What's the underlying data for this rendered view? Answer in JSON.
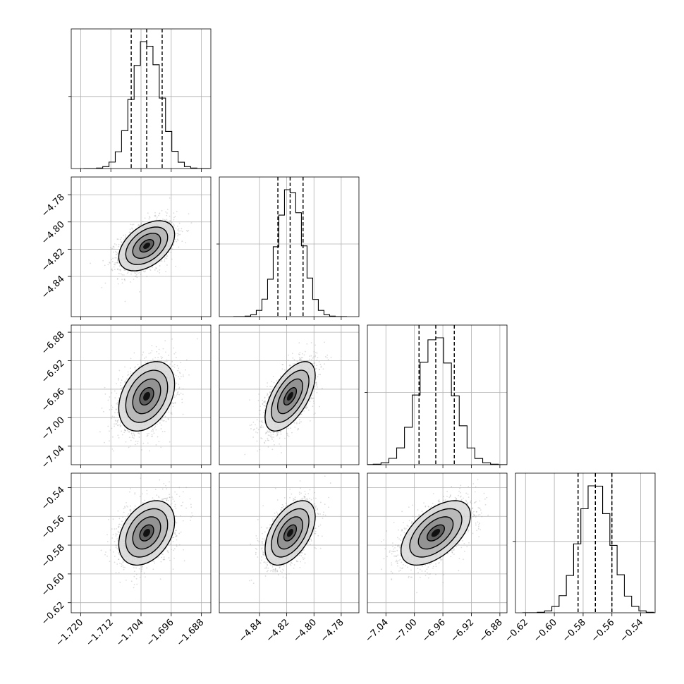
{
  "chart_data": {
    "type": "corner",
    "grid": true,
    "parameters": [
      {
        "mean": -1.7025,
        "sigma": 0.0037,
        "quantiles": [
          -1.7066,
          -1.7025,
          -1.6984
        ],
        "range": [
          -1.7225,
          -1.6855
        ],
        "ticks": [
          "-1.720",
          "-1.712",
          "-1.704",
          "-1.696",
          "-1.688"
        ],
        "tick_values": [
          -1.72,
          -1.712,
          -1.704,
          -1.696,
          -1.688
        ]
      },
      {
        "mean": -4.8175,
        "sigma": 0.0092,
        "quantiles": [
          -4.8265,
          -4.8175,
          -4.808
        ],
        "range": [
          -4.8695,
          -4.767
        ],
        "ticks": [
          "-4.84",
          "-4.82",
          "-4.80",
          "-4.78"
        ],
        "tick_values": [
          -4.84,
          -4.82,
          -4.8,
          -4.78
        ]
      },
      {
        "mean": -6.97,
        "sigma": 0.0244,
        "quantiles": [
          -6.9935,
          -6.97,
          -6.944
        ],
        "range": [
          -7.066,
          -6.87
        ],
        "ticks": [
          "-7.04",
          "-7.00",
          "-6.96",
          "-6.92",
          "-6.88"
        ],
        "tick_values": [
          -7.04,
          -7.0,
          -6.96,
          -6.92,
          -6.88
        ]
      },
      {
        "mean": -0.5715,
        "sigma": 0.0112,
        "quantiles": [
          -0.5835,
          -0.5715,
          -0.56
        ],
        "range": [
          -0.627,
          -0.53
        ],
        "ticks": [
          "-0.62",
          "-0.60",
          "-0.58",
          "-0.56",
          "-0.54"
        ],
        "tick_values": [
          -0.62,
          -0.6,
          -0.58,
          -0.56,
          -0.54
        ]
      }
    ],
    "correlations": [
      [
        1,
        0.45,
        0.35,
        0.35
      ],
      [
        0.45,
        1,
        0.6,
        0.5
      ],
      [
        0.35,
        0.6,
        1,
        0.55
      ],
      [
        0.35,
        0.5,
        0.55,
        1
      ]
    ],
    "contour_levels_sigma": [
      0.5,
      1.0,
      1.5,
      2.0
    ]
  }
}
